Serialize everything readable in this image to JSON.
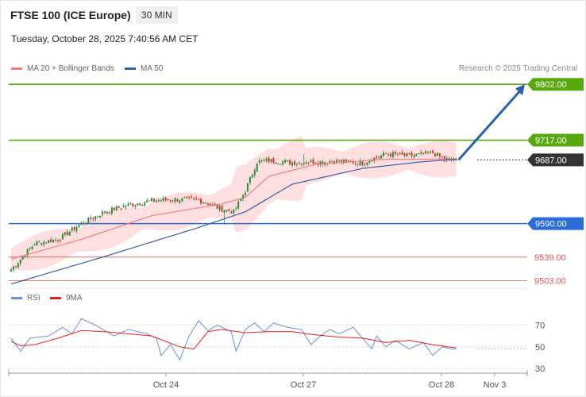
{
  "header": {
    "title": "FTSE 100 (ICE Europe)",
    "interval": "30 MIN",
    "datetime": "Tuesday, October 28, 2025 7:40:56 AM CET",
    "credit": "Research © 2025 Trading Central"
  },
  "legend": {
    "ma20": "MA 20 + Bollinger Bands",
    "ma50": "MA 50",
    "rsi": "RSI",
    "ma9": "9MA"
  },
  "colors": {
    "target": "#59a80f",
    "support": "#2b6cd8",
    "weak": "#e05555",
    "price": "#333333",
    "arrow": "#2d62a8",
    "ma20": "#f08080",
    "ma50": "#3a5fa0",
    "band": "#ffd9d9",
    "rsi": "#6a8fdb",
    "ma9": "#e02020",
    "up": "#2c8a3e",
    "down": "#c0392b"
  },
  "chart_data": [
    {
      "type": "candlestick",
      "x_ticks": [
        "Oct 24",
        "Oct 27",
        "Oct 28",
        "Nov 3"
      ],
      "ylim": [
        9488,
        9818
      ],
      "levels": [
        {
          "value": 9802.0,
          "label": "9802.00",
          "kind": "target"
        },
        {
          "value": 9717.0,
          "label": "9717.00",
          "kind": "target"
        },
        {
          "value": 9687.0,
          "label": "9687.00",
          "kind": "price"
        },
        {
          "value": 9590.0,
          "label": "9590.00",
          "kind": "support"
        },
        {
          "value": 9539.0,
          "label": "9539.00",
          "kind": "weak"
        },
        {
          "value": 9503.0,
          "label": "9503.00",
          "kind": "weak"
        }
      ],
      "close_anchors": [
        [
          0,
          9520
        ],
        [
          10,
          9560
        ],
        [
          20,
          9566
        ],
        [
          30,
          9590
        ],
        [
          40,
          9608
        ],
        [
          50,
          9618
        ],
        [
          60,
          9625
        ],
        [
          70,
          9627
        ],
        [
          80,
          9626
        ],
        [
          90,
          9612
        ],
        [
          95,
          9608
        ],
        [
          100,
          9640
        ],
        [
          105,
          9684
        ],
        [
          110,
          9686
        ],
        [
          120,
          9683
        ],
        [
          130,
          9684
        ],
        [
          140,
          9685
        ],
        [
          150,
          9683
        ],
        [
          160,
          9696
        ],
        [
          170,
          9693
        ],
        [
          180,
          9698
        ],
        [
          185,
          9688
        ],
        [
          190,
          9686
        ]
      ],
      "series": [
        {
          "name": "MA 20",
          "anchors": [
            [
              0,
              9536
            ],
            [
              30,
              9566
            ],
            [
              60,
              9602
            ],
            [
              90,
              9620
            ],
            [
              100,
              9630
            ],
            [
              110,
              9662
            ],
            [
              130,
              9680
            ],
            [
              160,
              9688
            ],
            [
              190,
              9688
            ]
          ]
        },
        {
          "name": "MA 50",
          "anchors": [
            [
              0,
              9498
            ],
            [
              40,
              9540
            ],
            [
              80,
              9584
            ],
            [
              100,
              9608
            ],
            [
              120,
              9650
            ],
            [
              150,
              9674
            ],
            [
              175,
              9684
            ],
            [
              190,
              9688
            ]
          ]
        }
      ],
      "projection": {
        "from": 9687,
        "to": 9802
      }
    },
    {
      "type": "line",
      "title": "RSI",
      "ylim": [
        25,
        85
      ],
      "y_ticks": [
        70,
        50,
        30
      ],
      "series": [
        {
          "name": "RSI",
          "anchors": [
            [
              0,
              58
            ],
            [
              4,
              46
            ],
            [
              8,
              58
            ],
            [
              16,
              60
            ],
            [
              22,
              68
            ],
            [
              26,
              62
            ],
            [
              30,
              76
            ],
            [
              36,
              70
            ],
            [
              44,
              60
            ],
            [
              50,
              66
            ],
            [
              58,
              62
            ],
            [
              62,
              58
            ],
            [
              64,
              42
            ],
            [
              68,
              52
            ],
            [
              72,
              38
            ],
            [
              76,
              60
            ],
            [
              80,
              74
            ],
            [
              84,
              65
            ],
            [
              88,
              70
            ],
            [
              94,
              64
            ],
            [
              96,
              46
            ],
            [
              100,
              66
            ],
            [
              104,
              72
            ],
            [
              108,
              64
            ],
            [
              112,
              72
            ],
            [
              118,
              68
            ],
            [
              124,
              66
            ],
            [
              128,
              52
            ],
            [
              132,
              60
            ],
            [
              136,
              66
            ],
            [
              140,
              62
            ],
            [
              146,
              68
            ],
            [
              150,
              58
            ],
            [
              154,
              48
            ],
            [
              156,
              60
            ],
            [
              160,
              50
            ],
            [
              164,
              56
            ],
            [
              170,
              48
            ],
            [
              176,
              54
            ],
            [
              180,
              42
            ],
            [
              184,
              50
            ],
            [
              188,
              48
            ],
            [
              190,
              48
            ]
          ]
        },
        {
          "name": "9MA",
          "anchors": [
            [
              0,
              55
            ],
            [
              4,
              51
            ],
            [
              10,
              52
            ],
            [
              20,
              58
            ],
            [
              30,
              65
            ],
            [
              40,
              64
            ],
            [
              50,
              62
            ],
            [
              60,
              60
            ],
            [
              66,
              55
            ],
            [
              72,
              50
            ],
            [
              78,
              48
            ],
            [
              84,
              64
            ],
            [
              90,
              66
            ],
            [
              100,
              63
            ],
            [
              110,
              64
            ],
            [
              120,
              64
            ],
            [
              130,
              61
            ],
            [
              140,
              59
            ],
            [
              150,
              58
            ],
            [
              160,
              54
            ],
            [
              170,
              56
            ],
            [
              180,
              52
            ],
            [
              190,
              49
            ]
          ]
        }
      ]
    }
  ]
}
